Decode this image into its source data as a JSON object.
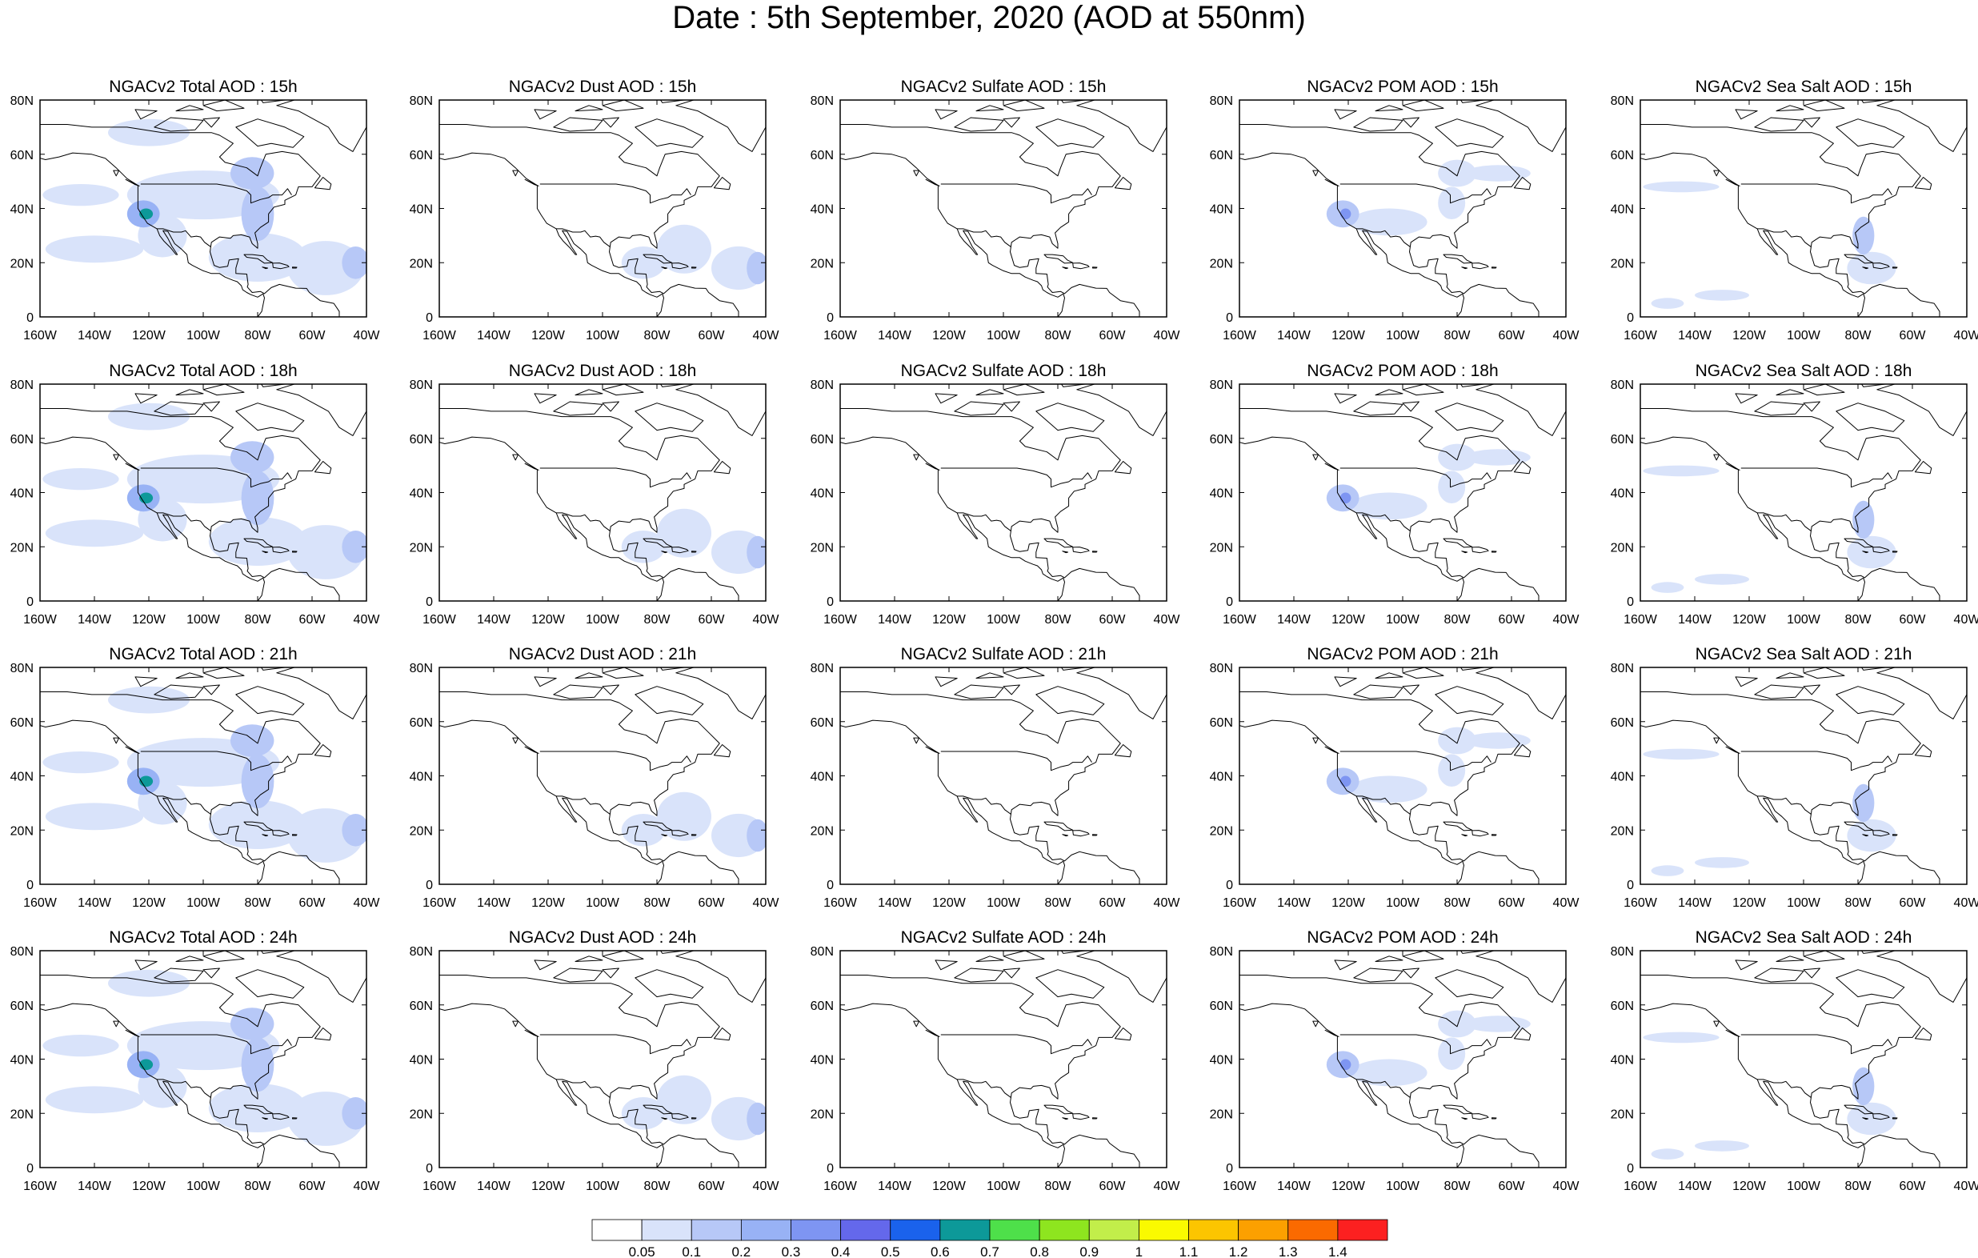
{
  "title": "Date : 5th September, 2020 (AOD at 550nm)",
  "row_titles": [
    [
      "NGACv2 Total AOD : 15h",
      "NGACv2 Dust AOD : 15h",
      "NGACv2 Sulfate AOD : 15h",
      "NGACv2 POM AOD : 15h",
      "NGACv2 Sea Salt AOD : 15h"
    ],
    [
      "NGACv2 Total AOD : 18h",
      "NGACv2 Dust AOD : 18h",
      "NGACv2 Sulfate AOD : 18h",
      "NGACv2 POM AOD : 18h",
      "NGACv2 Sea Salt AOD : 18h"
    ],
    [
      "NGACv2 Total AOD : 21h",
      "NGACv2 Dust AOD : 21h",
      "NGACv2 Sulfate AOD : 21h",
      "NGACv2 POM AOD : 21h",
      "NGACv2 Sea Salt AOD : 21h"
    ],
    [
      "NGACv2 Total AOD : 24h",
      "NGACv2 Dust AOD : 24h",
      "NGACv2 Sulfate AOD : 24h",
      "NGACv2 POM AOD : 24h",
      "NGACv2 Sea Salt  AOD : 24h"
    ]
  ],
  "map": {
    "lon_range": [
      -160,
      -40
    ],
    "lat_range": [
      0,
      80
    ],
    "x_tick_values": [
      -160,
      -140,
      -120,
      -100,
      -80,
      -60,
      -40
    ],
    "x_tick_labels": [
      "160W",
      "140W",
      "120W",
      "100W",
      "80W",
      "60W",
      "40W"
    ],
    "y_tick_values": [
      0,
      20,
      40,
      60,
      80
    ],
    "y_tick_labels": [
      "0",
      "20N",
      "40N",
      "60N",
      "80N"
    ]
  },
  "colorbar": {
    "colors": [
      "#ffffff",
      "#d9e3fa",
      "#b7c8f7",
      "#98b2f5",
      "#7e95f2",
      "#6468eb",
      "#1a62ec",
      "#0d9999",
      "#4ee04a",
      "#8ee51f",
      "#c2ee4a",
      "#fafa00",
      "#fcc500",
      "#fca000",
      "#fb6a00",
      "#fc2020"
    ],
    "labels": [
      "0.05",
      "0.1",
      "0.2",
      "0.3",
      "0.4",
      "0.5",
      "0.6",
      "0.7",
      "0.8",
      "0.9",
      "1",
      "1.1",
      "1.2",
      "1.3",
      "1.4"
    ]
  },
  "aod_fields": {
    "total": [
      {
        "lon": -122,
        "lat": 38,
        "rx": 6,
        "ry": 5,
        "level": 3
      },
      {
        "lon": -121,
        "lat": 38,
        "rx": 2.5,
        "ry": 2,
        "level": 7
      },
      {
        "lon": -115,
        "lat": 30,
        "rx": 9,
        "ry": 8,
        "level": 1
      },
      {
        "lon": -100,
        "lat": 45,
        "rx": 28,
        "ry": 9,
        "level": 1
      },
      {
        "lon": -82,
        "lat": 53,
        "rx": 8,
        "ry": 6,
        "level": 2
      },
      {
        "lon": -80,
        "lat": 38,
        "rx": 6,
        "ry": 10,
        "level": 2
      },
      {
        "lon": -80,
        "lat": 22,
        "rx": 18,
        "ry": 9,
        "level": 1
      },
      {
        "lon": -55,
        "lat": 18,
        "rx": 14,
        "ry": 10,
        "level": 1
      },
      {
        "lon": -44,
        "lat": 20,
        "rx": 5,
        "ry": 6,
        "level": 2
      },
      {
        "lon": -140,
        "lat": 25,
        "rx": 18,
        "ry": 5,
        "level": 1
      },
      {
        "lon": -120,
        "lat": 68,
        "rx": 15,
        "ry": 5,
        "level": 1
      },
      {
        "lon": -145,
        "lat": 45,
        "rx": 14,
        "ry": 4,
        "level": 1
      }
    ],
    "dust": [
      {
        "lon": -70,
        "lat": 25,
        "rx": 10,
        "ry": 9,
        "level": 1
      },
      {
        "lon": -50,
        "lat": 18,
        "rx": 10,
        "ry": 8,
        "level": 1
      },
      {
        "lon": -43,
        "lat": 18,
        "rx": 4,
        "ry": 6,
        "level": 2
      },
      {
        "lon": -85,
        "lat": 20,
        "rx": 8,
        "ry": 6,
        "level": 1
      }
    ],
    "sulfate": [],
    "pom": [
      {
        "lon": -122,
        "lat": 38,
        "rx": 6,
        "ry": 5,
        "level": 2
      },
      {
        "lon": -121,
        "lat": 38,
        "rx": 2,
        "ry": 2,
        "level": 4
      },
      {
        "lon": -105,
        "lat": 35,
        "rx": 14,
        "ry": 5,
        "level": 1
      },
      {
        "lon": -80,
        "lat": 53,
        "rx": 7,
        "ry": 5,
        "level": 1
      },
      {
        "lon": -65,
        "lat": 53,
        "rx": 12,
        "ry": 3,
        "level": 1
      },
      {
        "lon": -82,
        "lat": 42,
        "rx": 5,
        "ry": 6,
        "level": 1
      }
    ],
    "seasalt": [
      {
        "lon": -78,
        "lat": 30,
        "rx": 4,
        "ry": 7,
        "level": 2
      },
      {
        "lon": -75,
        "lat": 18,
        "rx": 9,
        "ry": 6,
        "level": 1
      },
      {
        "lon": -145,
        "lat": 48,
        "rx": 14,
        "ry": 2,
        "level": 1
      },
      {
        "lon": -150,
        "lat": 5,
        "rx": 6,
        "ry": 2,
        "level": 1
      },
      {
        "lon": -130,
        "lat": 8,
        "rx": 10,
        "ry": 2,
        "level": 1
      }
    ]
  }
}
